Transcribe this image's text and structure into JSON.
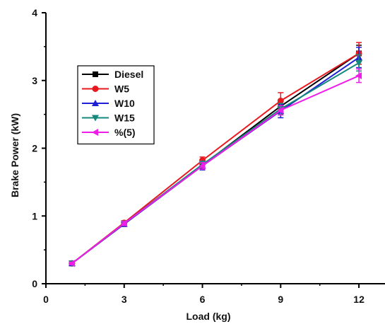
{
  "chart_data": {
    "type": "line",
    "title": "",
    "xlabel": "Load (kg)",
    "ylabel": "Brake Power (kW)",
    "xlim": [
      0,
      13
    ],
    "ylim": [
      0,
      4
    ],
    "xticks": [
      0,
      3,
      6,
      9,
      12
    ],
    "yticks": [
      0,
      1,
      2,
      3,
      4
    ],
    "grid": false,
    "legend_position": "upper-left",
    "x": [
      1,
      3,
      6,
      9,
      12
    ],
    "series": [
      {
        "name": "Diesel",
        "color": "#000000",
        "marker": "square",
        "values": [
          0.3,
          0.88,
          1.75,
          2.62,
          3.4
        ],
        "error": [
          0.02,
          0.03,
          0.05,
          0.08,
          0.12
        ]
      },
      {
        "name": "W5",
        "color": "#e8191e",
        "marker": "circle",
        "values": [
          0.3,
          0.9,
          1.82,
          2.7,
          3.4
        ],
        "error": [
          0.02,
          0.03,
          0.05,
          0.12,
          0.16
        ]
      },
      {
        "name": "W10",
        "color": "#1f1fd6",
        "marker": "triangle-up",
        "values": [
          0.3,
          0.88,
          1.74,
          2.55,
          3.34
        ],
        "error": [
          0.02,
          0.03,
          0.06,
          0.1,
          0.15
        ]
      },
      {
        "name": "W15",
        "color": "#158a7c",
        "marker": "triangle-down",
        "values": [
          0.3,
          0.89,
          1.76,
          2.58,
          3.26
        ],
        "error": [
          0.02,
          0.03,
          0.05,
          0.08,
          0.12
        ]
      },
      {
        "name": "%(5)",
        "color": "#ee1ee8",
        "marker": "triangle-left",
        "values": [
          0.3,
          0.89,
          1.74,
          2.56,
          3.07
        ],
        "error": [
          0.02,
          0.03,
          0.05,
          0.07,
          0.1
        ]
      }
    ]
  }
}
